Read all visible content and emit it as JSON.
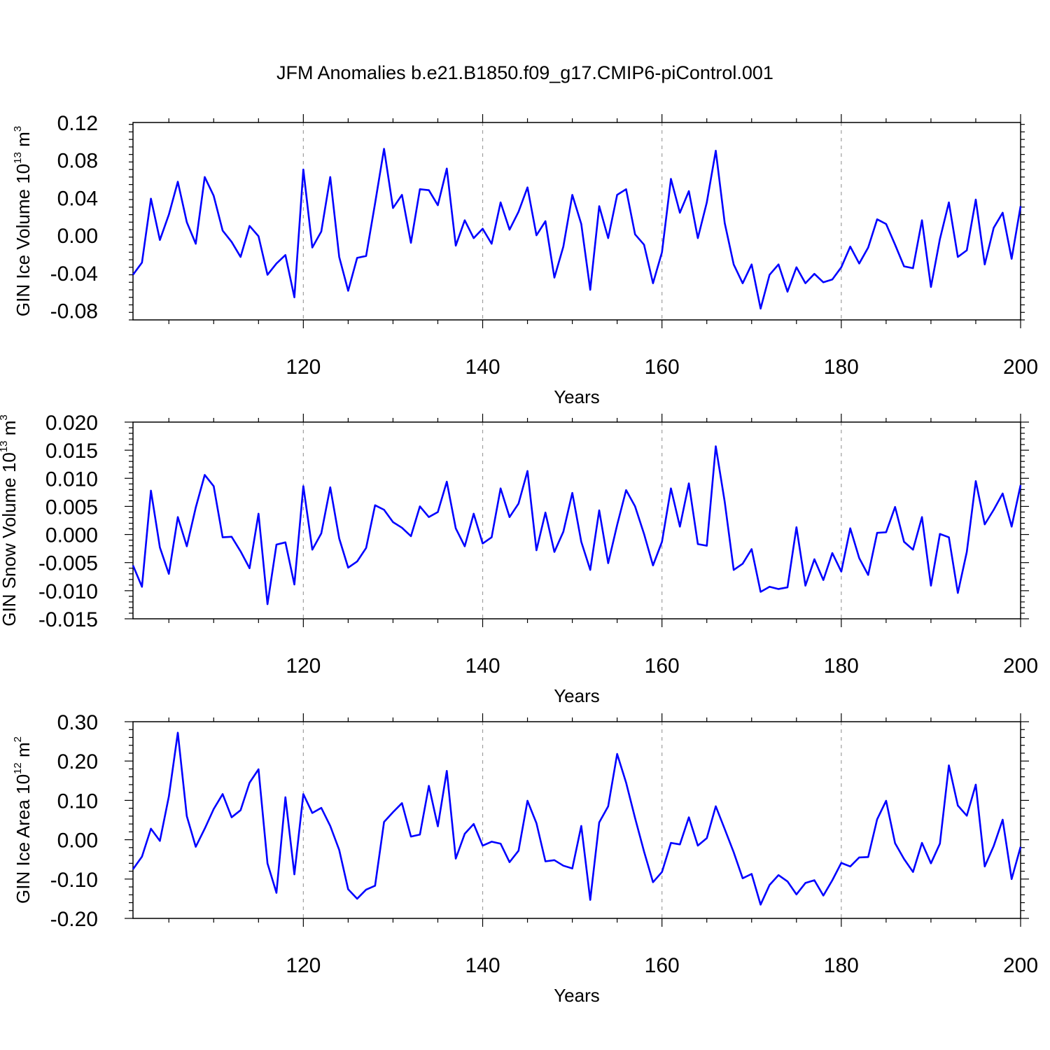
{
  "figure": {
    "title": "JFM Anomalies b.e21.B1850.f09_g17.CMIP6-piControl.001",
    "line_color": "#0000ff",
    "grid_color": "#9e9e9e"
  },
  "chart_data": [
    {
      "type": "line",
      "name": "GIN Ice Volume",
      "ylabel": {
        "text": "GIN Ice Volume 10",
        "sup": "13",
        "unit": " m",
        "unit_sup": "3"
      },
      "xlabel": "Years",
      "xlim": [
        101,
        200
      ],
      "ylim": [
        -0.09,
        0.12
      ],
      "yticks": [
        0.12,
        0.08,
        0.04,
        0.0,
        -0.04,
        -0.08
      ],
      "ytick_labels": [
        "0.12",
        "0.08",
        "0.04",
        "0.00",
        "-0.04",
        "-0.08"
      ],
      "xticks": [
        120,
        140,
        160,
        180,
        200
      ],
      "xtick_labels": [
        "120",
        "140",
        "160",
        "180",
        "200"
      ],
      "grid_x": [
        120,
        140,
        160,
        180
      ],
      "x_start": 101,
      "values": [
        -0.042,
        -0.029,
        0.039,
        -0.005,
        0.022,
        0.057,
        0.014,
        -0.009,
        0.062,
        0.042,
        0.005,
        -0.007,
        -0.023,
        0.01,
        -0.001,
        -0.042,
        -0.03,
        -0.021,
        -0.066,
        0.07,
        -0.013,
        0.004,
        0.062,
        -0.023,
        -0.059,
        -0.024,
        -0.022,
        0.034,
        0.092,
        0.029,
        0.043,
        -0.008,
        0.049,
        0.048,
        0.032,
        0.071,
        -0.011,
        0.016,
        -0.003,
        0.007,
        -0.009,
        0.035,
        0.006,
        0.025,
        0.051,
        0.0,
        0.015,
        -0.045,
        -0.012,
        0.043,
        0.012,
        -0.058,
        0.031,
        -0.003,
        0.043,
        0.049,
        0.001,
        -0.01,
        -0.051,
        -0.018,
        0.06,
        0.024,
        0.047,
        -0.003,
        0.035,
        0.09,
        0.013,
        -0.031,
        -0.051,
        -0.031,
        -0.078,
        -0.042,
        -0.031,
        -0.06,
        -0.034,
        -0.051,
        -0.041,
        -0.05,
        -0.047,
        -0.034,
        -0.012,
        -0.03,
        -0.013,
        0.017,
        0.012,
        -0.01,
        -0.033,
        -0.035,
        0.016,
        -0.055,
        -0.004,
        0.035,
        -0.023,
        -0.016,
        0.038,
        -0.031,
        0.008,
        0.024,
        -0.025,
        0.031
      ]
    },
    {
      "type": "line",
      "name": "GIN Snow Volume",
      "ylabel": {
        "text": "GIN Snow Volume 10",
        "sup": "13",
        "unit": " m",
        "unit_sup": "3"
      },
      "xlabel": "Years",
      "xlim": [
        101,
        200
      ],
      "ylim": [
        -0.015,
        0.02
      ],
      "yticks": [
        0.02,
        0.015,
        0.01,
        0.005,
        0.0,
        -0.005,
        -0.01,
        -0.015
      ],
      "ytick_labels": [
        "0.020",
        "0.015",
        "0.010",
        "0.005",
        "0.000",
        "-0.005",
        "-0.010",
        "-0.015"
      ],
      "xticks": [
        120,
        140,
        160,
        180,
        200
      ],
      "xtick_labels": [
        "120",
        "140",
        "160",
        "180",
        "200"
      ],
      "grid_x": [
        120,
        140,
        160,
        180
      ],
      "x_start": 101,
      "values": [
        -0.0055,
        -0.0093,
        0.0078,
        -0.0023,
        -0.007,
        0.0031,
        -0.0021,
        0.0048,
        0.0106,
        0.0086,
        -0.0005,
        -0.0004,
        -0.003,
        -0.006,
        0.0037,
        -0.0124,
        -0.0018,
        -0.0014,
        -0.0089,
        0.0086,
        -0.0027,
        0.0002,
        0.0084,
        -0.0007,
        -0.0059,
        -0.0048,
        -0.0024,
        0.0052,
        0.0044,
        0.0022,
        0.0012,
        -0.0003,
        0.005,
        0.0031,
        0.004,
        0.0094,
        0.0011,
        -0.0021,
        0.0037,
        -0.0016,
        -0.0005,
        0.0082,
        0.0031,
        0.0055,
        0.0113,
        -0.0028,
        0.0039,
        -0.0031,
        0.0005,
        0.0074,
        -0.0013,
        -0.0063,
        0.0043,
        -0.0051,
        0.0017,
        0.0079,
        0.005,
        0.0001,
        -0.0055,
        -0.0013,
        0.0082,
        0.0014,
        0.0091,
        -0.0017,
        -0.002,
        0.0157,
        0.0058,
        -0.0063,
        -0.0052,
        -0.0026,
        -0.0102,
        -0.0093,
        -0.0097,
        -0.0094,
        0.0013,
        -0.0091,
        -0.0044,
        -0.0081,
        -0.0033,
        -0.0066,
        0.0011,
        -0.0042,
        -0.0072,
        0.0003,
        0.0004,
        0.0049,
        -0.0013,
        -0.0027,
        0.0031,
        -0.0091,
        0.0001,
        -0.0005,
        -0.0104,
        -0.0031,
        0.0095,
        0.0018,
        0.0044,
        0.0073,
        0.0014,
        0.0088
      ]
    },
    {
      "type": "line",
      "name": "GIN Ice Area",
      "ylabel": {
        "text": "GIN Ice Area 10",
        "sup": "12",
        "unit": " m",
        "unit_sup": "2"
      },
      "xlabel": "Years",
      "xlim": [
        101,
        200
      ],
      "ylim": [
        -0.2,
        0.3
      ],
      "yticks": [
        0.3,
        0.2,
        0.1,
        0.0,
        -0.1,
        -0.2
      ],
      "ytick_labels": [
        "0.30",
        "0.20",
        "0.10",
        "0.00",
        "-0.10",
        "-0.20"
      ],
      "xticks": [
        120,
        140,
        160,
        180,
        200
      ],
      "xtick_labels": [
        "120",
        "140",
        "160",
        "180",
        "200"
      ],
      "grid_x": [
        120,
        140,
        160,
        180
      ],
      "x_start": 101,
      "values": [
        -0.075,
        -0.043,
        0.028,
        -0.003,
        0.11,
        0.272,
        0.06,
        -0.018,
        0.028,
        0.078,
        0.116,
        0.057,
        0.075,
        0.145,
        0.179,
        -0.06,
        -0.135,
        0.108,
        -0.088,
        0.116,
        0.068,
        0.081,
        0.035,
        -0.026,
        -0.126,
        -0.15,
        -0.127,
        -0.117,
        0.045,
        0.07,
        0.093,
        0.008,
        0.013,
        0.137,
        0.034,
        0.175,
        -0.048,
        0.015,
        0.04,
        -0.015,
        -0.005,
        -0.01,
        -0.057,
        -0.028,
        0.099,
        0.042,
        -0.055,
        -0.052,
        -0.066,
        -0.073,
        0.035,
        -0.153,
        0.044,
        0.085,
        0.218,
        0.145,
        0.055,
        -0.03,
        -0.108,
        -0.082,
        -0.008,
        -0.012,
        0.057,
        -0.015,
        0.004,
        0.085,
        0.027,
        -0.032,
        -0.098,
        -0.087,
        -0.165,
        -0.115,
        -0.09,
        -0.106,
        -0.139,
        -0.11,
        -0.103,
        -0.142,
        -0.103,
        -0.059,
        -0.068,
        -0.045,
        -0.044,
        0.052,
        0.099,
        -0.009,
        -0.049,
        -0.082,
        -0.008,
        -0.06,
        -0.01,
        0.189,
        0.087,
        0.061,
        0.14,
        -0.068,
        -0.016,
        0.051,
        -0.1,
        -0.018
      ]
    }
  ]
}
